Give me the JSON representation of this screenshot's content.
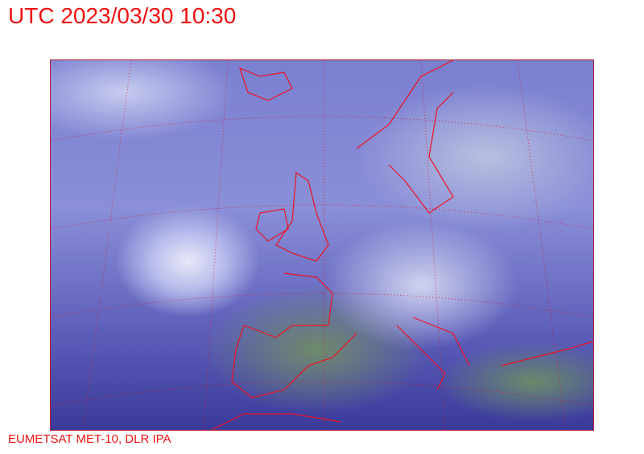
{
  "header": {
    "title": "UTC 2023/03/30 10:30"
  },
  "footer": {
    "credit": "EUMETSAT MET-10, DLR IPA"
  },
  "map": {
    "type": "satellite-image",
    "region": "Europe / North Atlantic",
    "overlay_color": "#dd1122"
  }
}
